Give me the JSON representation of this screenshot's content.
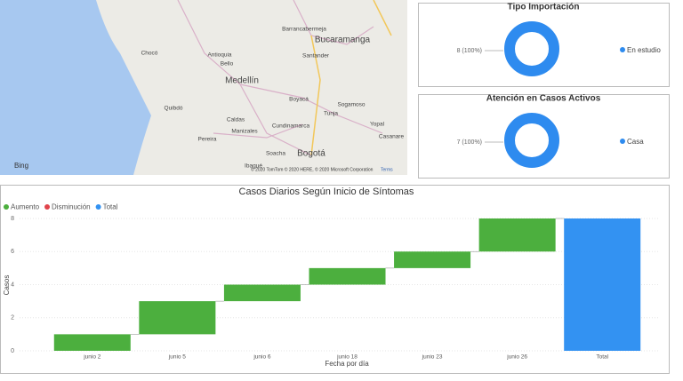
{
  "map": {
    "labels": [
      "Chocó",
      "Antioquia",
      "Bello",
      "Medellín",
      "Quibdó",
      "Caldas",
      "Manizales",
      "Pereira",
      "Ibagué",
      "Soacha",
      "Bogotá",
      "Cundinamarca",
      "Boyacá",
      "Tunja",
      "Sogamoso",
      "Yopal",
      "Casanare",
      "Barrancabermeja",
      "Bucaramanga",
      "Santander"
    ],
    "brand": "Bing",
    "credits": "© 2020 TomTom © 2020 HERE, © 2020 Microsoft Corporation",
    "terms": "Terms"
  },
  "chart_data": [
    {
      "type": "donut",
      "title": "Tipo Importación",
      "categories": [
        "En estudio"
      ],
      "values": [
        8
      ],
      "value_labels": [
        "8 (100%)"
      ],
      "color": "#2e8bef"
    },
    {
      "type": "donut",
      "title": "Atención en Casos Activos",
      "categories": [
        "Casa"
      ],
      "values": [
        7
      ],
      "value_labels": [
        "7 (100%)"
      ],
      "color": "#2e8bef"
    },
    {
      "type": "waterfall",
      "title": "Casos Diarios Según Inicio de Síntomas",
      "x_label": "Fecha por día",
      "y_label": "Casos",
      "categories": [
        "junio 2",
        "junio 5",
        "junio 6",
        "junio 18",
        "junio 23",
        "junio 26",
        "Total"
      ],
      "series": [
        {
          "name": "Aumento",
          "color": "#4caf3e",
          "values": [
            1,
            2,
            1,
            1,
            1,
            2,
            null
          ]
        },
        {
          "name": "Disminución",
          "color": "#e0434b",
          "values": [
            null,
            null,
            null,
            null,
            null,
            null,
            null
          ]
        },
        {
          "name": "Total",
          "color": "#3392f2",
          "values": [
            null,
            null,
            null,
            null,
            null,
            null,
            8
          ]
        }
      ],
      "ylim": [
        0,
        8
      ],
      "yticks": [
        0,
        2,
        4,
        6,
        8
      ],
      "grid": true
    }
  ]
}
